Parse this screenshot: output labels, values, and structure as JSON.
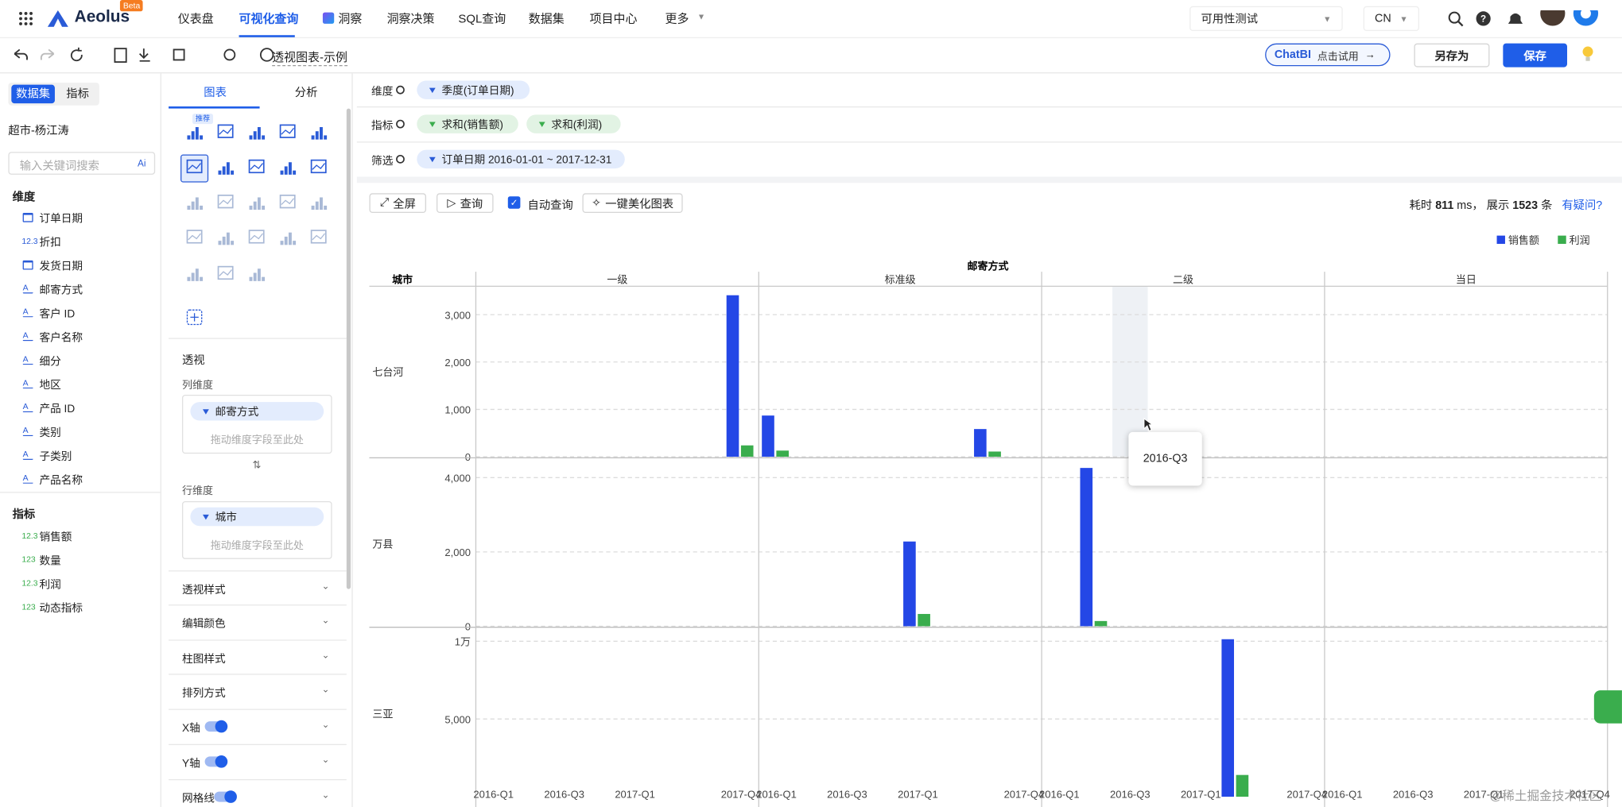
{
  "nav": {
    "brand": "Aeolus",
    "badge": "Beta",
    "items": [
      "仪表盘",
      "可视化查询",
      "洞察",
      "洞察决策",
      "SQL查询",
      "数据集",
      "项目中心",
      "更多"
    ],
    "project": "可用性测试",
    "lang": "CN"
  },
  "toolbar": {
    "title": "透视图表-示例",
    "chatbi": "ChatBI",
    "chatbi_hint": "点击试用",
    "save_as": "另存为",
    "save": "保存"
  },
  "sidebar": {
    "tabs": [
      "数据集",
      "指标"
    ],
    "dataset": "超市-杨江涛",
    "search_placeholder": "输入关键词搜索",
    "search_ai": "Ai",
    "dimensions_title": "维度",
    "dimensions": [
      {
        "icon": "date",
        "name": "订单日期"
      },
      {
        "type_label": "12.3",
        "name": "折扣"
      },
      {
        "icon": "date",
        "name": "发货日期"
      },
      {
        "icon": "text",
        "name": "邮寄方式"
      },
      {
        "icon": "text",
        "name": "客户 ID"
      },
      {
        "icon": "text",
        "name": "客户名称"
      },
      {
        "icon": "text",
        "name": "细分"
      },
      {
        "icon": "text",
        "name": "地区"
      },
      {
        "icon": "text",
        "name": "产品 ID"
      },
      {
        "icon": "text",
        "name": "类别"
      },
      {
        "icon": "text",
        "name": "子类别"
      },
      {
        "icon": "text",
        "name": "产品名称"
      }
    ],
    "measures_title": "指标",
    "measures": [
      {
        "type_label": "12.3",
        "name": "销售额"
      },
      {
        "type_label": "123",
        "name": "数量"
      },
      {
        "type_label": "12.3",
        "name": "利润"
      },
      {
        "type_label": "123",
        "name": "动态指标"
      }
    ]
  },
  "config": {
    "tabs": [
      "图表",
      "分析"
    ],
    "recommend": "推荐",
    "pivot_title": "透视",
    "col_dim_title": "列维度",
    "col_dim": "邮寄方式",
    "drop_hint": "拖动维度字段至此处",
    "row_dim_title": "行维度",
    "row_dim": "城市",
    "sections": [
      "透视样式",
      "编辑颜色",
      "柱图样式",
      "排列方式"
    ],
    "toggles": [
      {
        "label": "X轴",
        "on": true
      },
      {
        "label": "Y轴",
        "on": true
      },
      {
        "label": "网格线",
        "on": true
      }
    ]
  },
  "query": {
    "dim_label": "维度",
    "dims": [
      "季度(订单日期)"
    ],
    "measure_label": "指标",
    "measures": [
      "求和(销售额)",
      "求和(利润)"
    ],
    "filter_label": "筛选",
    "filters": [
      "订单日期 2016-01-01 ~ 2017-12-31"
    ],
    "buttons": {
      "fullscreen": "全屏",
      "query": "查询",
      "auto": "自动查询",
      "beautify": "一键美化图表"
    },
    "auto_query": true,
    "stats": {
      "time_prefix": "耗时",
      "time_ms": 811,
      "time_unit": "ms，",
      "rows_prefix": "展示",
      "rows": 1523,
      "rows_unit": "条"
    },
    "help": "有疑问?"
  },
  "chart_data": {
    "type": "bar",
    "column_title": "邮寄方式",
    "row_title": "城市",
    "columns": [
      "一级",
      "标准级",
      "二级",
      "当日"
    ],
    "categories": [
      "2016-Q1",
      null,
      "2016-Q3",
      null,
      "2017-Q1",
      null,
      null,
      "2017-Q4"
    ],
    "series": [
      {
        "name": "销售额",
        "color": "#2447e6"
      },
      {
        "name": "利润",
        "color": "#3aad4d"
      }
    ],
    "grid": true,
    "tooltip": "2016-Q3",
    "rows": [
      {
        "name": "七台河",
        "ylim": [
          0,
          3600
        ],
        "yticks": [
          0,
          {
            "value": 1000,
            "label": "1,000"
          },
          {
            "value": 2000,
            "label": "2,000"
          },
          {
            "value": 3000,
            "label": "3,000"
          }
        ],
        "data": [
          [
            [
              null,
              null,
              null,
              null,
              null,
              null,
              null,
              3410
            ],
            [
              null,
              null,
              null,
              null,
              null,
              null,
              null,
              240
            ]
          ],
          [
            [
              870,
              null,
              null,
              null,
              null,
              null,
              585,
              null
            ],
            [
              130,
              null,
              null,
              null,
              null,
              null,
              110,
              null
            ]
          ],
          [
            [
              null,
              null,
              null,
              null,
              null,
              null,
              null,
              null
            ],
            [
              null,
              null,
              null,
              null,
              null,
              null,
              null,
              null
            ]
          ],
          [
            [
              null,
              null,
              null,
              null,
              null,
              null,
              null,
              null
            ],
            [
              null,
              null,
              null,
              null,
              null,
              null,
              null,
              null
            ]
          ]
        ]
      },
      {
        "name": "万县",
        "ylim": [
          0,
          4450
        ],
        "yticks": [
          0,
          {
            "value": 2000,
            "label": "2,000"
          },
          {
            "value": 4000,
            "label": "4,000"
          }
        ],
        "data": [
          [
            [
              null,
              null,
              null,
              null,
              null,
              null,
              null,
              null
            ],
            [
              null,
              null,
              null,
              null,
              null,
              null,
              null,
              null
            ]
          ],
          [
            [
              null,
              null,
              null,
              null,
              2280,
              null,
              null,
              null
            ],
            [
              null,
              null,
              null,
              null,
              330,
              null,
              null,
              null
            ]
          ],
          [
            [
              null,
              4260,
              null,
              null,
              null,
              null,
              null,
              null
            ],
            [
              null,
              140,
              null,
              null,
              null,
              null,
              null,
              null
            ]
          ],
          [
            [
              null,
              null,
              null,
              null,
              null,
              null,
              null,
              null
            ],
            [
              null,
              null,
              null,
              null,
              null,
              null,
              null,
              null
            ]
          ]
        ]
      },
      {
        "name": "三亚",
        "ylim": [
          0,
          10700
        ],
        "yticks": [
          {
            "value": 5000,
            "label": "5,000"
          },
          {
            "value": 10000,
            "label": "1万"
          }
        ],
        "data": [
          [
            [
              null,
              null,
              null,
              null,
              null,
              null,
              null,
              null
            ],
            [
              null,
              null,
              null,
              null,
              null,
              null,
              null,
              null
            ]
          ],
          [
            [
              null,
              null,
              null,
              null,
              null,
              null,
              null,
              null
            ],
            [
              null,
              null,
              null,
              null,
              null,
              null,
              null,
              null
            ]
          ],
          [
            [
              null,
              null,
              null,
              null,
              null,
              10130,
              null,
              null
            ],
            [
              null,
              null,
              null,
              null,
              null,
              1400,
              null,
              null
            ]
          ],
          [
            [
              null,
              null,
              null,
              null,
              null,
              null,
              null,
              null
            ],
            [
              null,
              null,
              null,
              null,
              null,
              null,
              null,
              null
            ]
          ]
        ]
      }
    ]
  },
  "watermark": "@稀土掘金技术社区"
}
